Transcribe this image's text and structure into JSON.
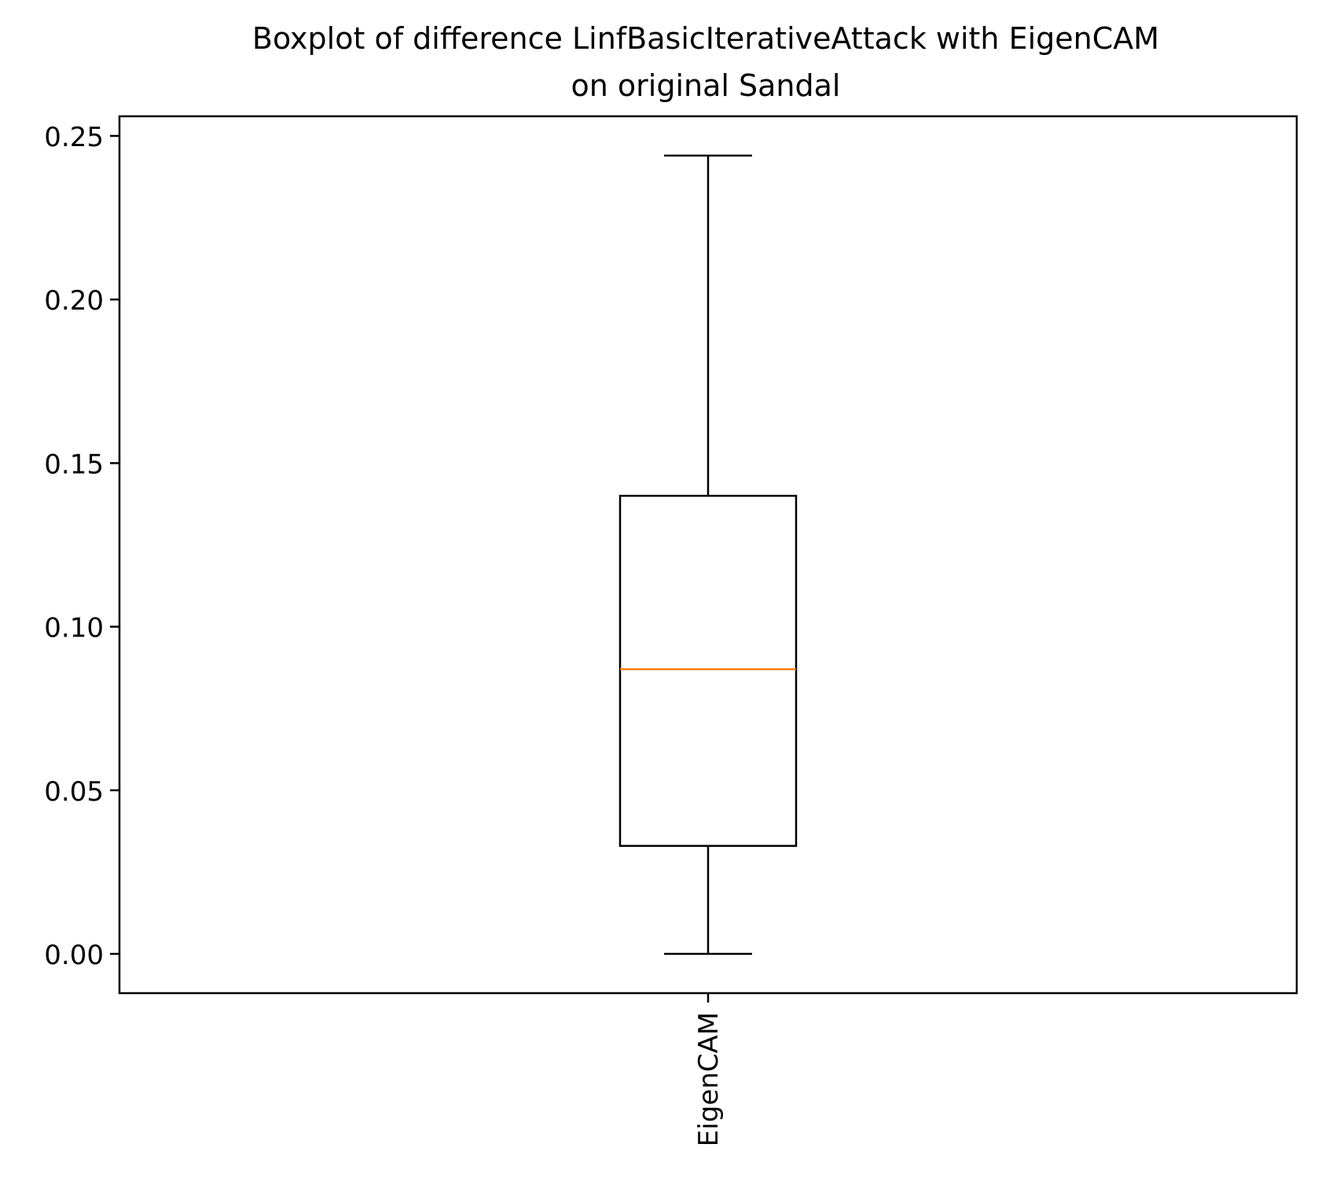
{
  "chart_data": {
    "type": "box",
    "title": "Boxplot of difference LinfBasicIterativeAttack with EigenCAM\non original Sandal",
    "title_lines": [
      "Boxplot of difference LinfBasicIterativeAttack with EigenCAM",
      "on original Sandal"
    ],
    "xlabel": "",
    "ylabel": "",
    "categories": [
      "EigenCAM"
    ],
    "ylim": [
      -0.012,
      0.256
    ],
    "yticks": [
      0.0,
      0.05,
      0.1,
      0.15,
      0.2,
      0.25
    ],
    "ytick_labels": [
      "0.00",
      "0.05",
      "0.10",
      "0.15",
      "0.20",
      "0.25"
    ],
    "boxes": [
      {
        "label": "EigenCAM",
        "whisker_low": 0.0,
        "q1": 0.033,
        "median": 0.087,
        "q3": 0.14,
        "whisker_high": 0.244
      }
    ],
    "grid": false,
    "colors": {
      "box": "#000000",
      "median": "#ff7f0e"
    }
  }
}
